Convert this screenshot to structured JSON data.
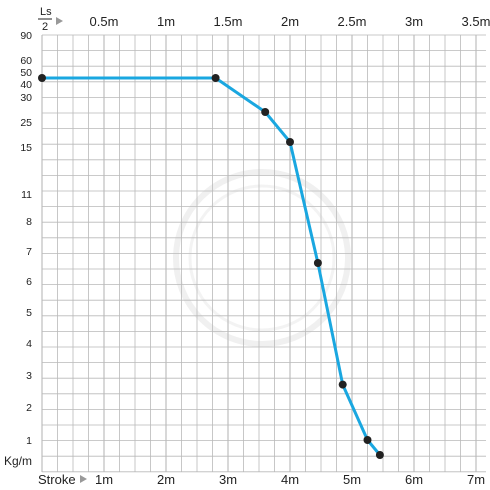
{
  "chart_data": {
    "type": "line",
    "corner_top_label_num": "Ls",
    "corner_top_label_den": "2",
    "bottom_axis_label": "Stroke",
    "y_unit_label": "Kg/m",
    "top_tick_labels": [
      "0.5m",
      "1m",
      "1.5m",
      "2m",
      "2.5m",
      "3m",
      "3.5m"
    ],
    "bottom_tick_labels": [
      "1m",
      "2m",
      "3m",
      "4m",
      "5m",
      "6m",
      "7m"
    ],
    "y_tick_labels": [
      "90",
      "60",
      "50",
      "40",
      "30",
      "25",
      "15",
      "11",
      "8",
      "7",
      "6",
      "5",
      "4",
      "3",
      "2",
      "1"
    ],
    "stroke_range_m": [
      0,
      7.4
    ],
    "grid": true,
    "series": [
      {
        "color": "#1aa7e0",
        "points": [
          {
            "stroke_m": 0.0,
            "kg_per_m": 45
          },
          {
            "stroke_m": 2.8,
            "kg_per_m": 45
          },
          {
            "stroke_m": 3.6,
            "kg_per_m": 27
          },
          {
            "stroke_m": 4.0,
            "kg_per_m": 17
          },
          {
            "stroke_m": 4.45,
            "kg_per_m": 6.6
          },
          {
            "stroke_m": 4.85,
            "kg_per_m": 2.7
          },
          {
            "stroke_m": 5.25,
            "kg_per_m": 1.0
          },
          {
            "stroke_m": 5.45,
            "kg_per_m": 0.5
          }
        ]
      }
    ]
  },
  "colors": {
    "line": "#1aa7e0",
    "point": "#222222",
    "grid": "#b9b9b9",
    "arrow": "#999999",
    "watermark": "#e6e6e6"
  }
}
